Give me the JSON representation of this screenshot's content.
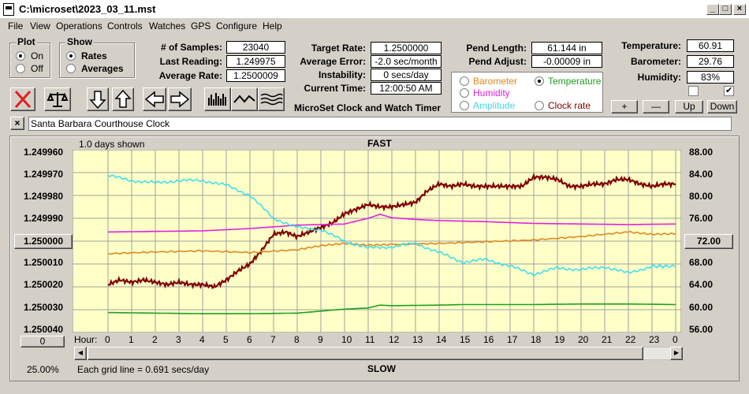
{
  "window": {
    "title": "C:\\microset\\2023_03_11.mst"
  },
  "menu": [
    "File",
    "View",
    "Operations",
    "Controls",
    "Watches",
    "GPS",
    "Configure",
    "Help"
  ],
  "plot_group": {
    "title": "Plot",
    "on_label": "On",
    "off_label": "Off",
    "selected": "On"
  },
  "show_group": {
    "title": "Show",
    "rates_label": "Rates",
    "averages_label": "Averages",
    "selected": "Rates"
  },
  "stats": {
    "samples_label": "# of Samples:",
    "samples": "23040",
    "last_reading_label": "Last Reading:",
    "last_reading": "1.249975",
    "average_rate_label": "Average Rate:",
    "average_rate": "1.2500009",
    "target_rate_label": "Target Rate:",
    "target_rate": "1.2500000",
    "average_error_label": "Average Error:",
    "average_error": "-2.0 sec/month",
    "instability_label": "Instability:",
    "instability": "0 secs/day",
    "current_time_label": "Current Time:",
    "current_time": "12:00:50 AM",
    "pend_length_label": "Pend Length:",
    "pend_length": "61.144 in",
    "pend_adjust_label": "Pend Adjust:",
    "pend_adjust": "-0.00009 in",
    "temperature_label": "Temperature:",
    "temperature": "60.91",
    "barometer_label": "Barometer:",
    "barometer": "29.76",
    "humidity_label": "Humidity:",
    "humidity": "83%"
  },
  "app_caption": "MicroSet Clock and Watch Timer",
  "sensor_options": {
    "barometer": "Barometer",
    "temperature": "Temperature",
    "humidity": "Humidity",
    "amplitude": "Amplitude",
    "clock_rate": "Clock rate",
    "selected": "Temperature"
  },
  "colors": {
    "barometer": "#e08820",
    "temperature": "#20a020",
    "humidity": "#e020e0",
    "amplitude": "#40e0f0",
    "clock_rate": "#800000",
    "grid": "#a0a0a0"
  },
  "adjust_buttons": {
    "plus": "+",
    "minus": "—",
    "up": "Up",
    "down": "Down"
  },
  "toolbar_icons": [
    "close-x-icon",
    "balance-scale-icon",
    "arrow-down-icon",
    "arrow-up-icon",
    "arrow-left-icon",
    "arrow-right-icon",
    "histogram-icon",
    "wave-icon",
    "multi-wave-icon"
  ],
  "clock_name": "Santa Barbara Courthouse Clock",
  "plot": {
    "days_shown": "1.0 days shown",
    "top_label": "FAST",
    "bottom_label": "SLOW",
    "hour_label": "Hour:",
    "hours": [
      "0",
      "1",
      "2",
      "3",
      "4",
      "5",
      "6",
      "7",
      "8",
      "9",
      "10",
      "11",
      "12",
      "13",
      "14",
      "15",
      "16",
      "17",
      "18",
      "19",
      "20",
      "21",
      "22",
      "23",
      "0"
    ],
    "left_ticks": [
      "1.249960",
      "1.249970",
      "1.249980",
      "1.249990",
      "",
      "1.250010",
      "1.250020",
      "1.250030",
      "1.250040"
    ],
    "center_button": "1.250000",
    "right_ticks": [
      "88.00",
      "84.00",
      "80.00",
      "76.00",
      "",
      "68.00",
      "64.00",
      "60.00",
      "56.00"
    ],
    "right_center_button": "72.00",
    "zero_button": "0",
    "zoom": "25.00%",
    "grid_note": "Each grid line = 0.691 secs/day"
  },
  "chart_data": {
    "type": "line",
    "x_label": "Hour",
    "x_range": [
      0,
      24
    ],
    "left_axis_range": [
      1.24996,
      1.25004
    ],
    "right_axis_range": [
      56,
      88
    ],
    "series": [
      {
        "name": "Clock rate",
        "axis": "left",
        "x": [
          0,
          0.5,
          1,
          1.5,
          2,
          2.5,
          3,
          3.5,
          4,
          4.5,
          5,
          5.5,
          6,
          6.5,
          7,
          7.5,
          8,
          8.5,
          9,
          9.5,
          10,
          10.5,
          11,
          11.5,
          12,
          12.5,
          13,
          13.5,
          14,
          14.5,
          15,
          15.5,
          16,
          16.5,
          17,
          17.5,
          18,
          18.5,
          19,
          19.5,
          20,
          20.5,
          21,
          21.5,
          22,
          22.5,
          23,
          23.5,
          24
        ],
        "values": [
          1.250019,
          1.250017,
          1.250018,
          1.250017,
          1.250018,
          1.250019,
          1.250018,
          1.250019,
          1.250019,
          1.25002,
          1.250017,
          1.250013,
          1.25001,
          1.250004,
          1.249997,
          1.249996,
          1.249998,
          1.249996,
          1.249994,
          1.249992,
          1.249988,
          1.249986,
          1.249984,
          1.249985,
          1.249985,
          1.249984,
          1.249983,
          1.249978,
          1.249975,
          1.249976,
          1.249975,
          1.249976,
          1.249976,
          1.249976,
          1.249976,
          1.249976,
          1.249972,
          1.249972,
          1.249973,
          1.249976,
          1.249976,
          1.249975,
          1.249975,
          1.249973,
          1.249973,
          1.249975,
          1.249976,
          1.249975,
          1.249975
        ]
      },
      {
        "name": "Humidity",
        "axis": "right",
        "x": [
          0,
          2,
          4,
          6,
          8,
          10,
          11,
          11.5,
          12,
          13,
          14,
          16,
          18,
          20,
          22,
          24
        ],
        "values": [
          73.6,
          73.7,
          73.8,
          74.2,
          74.8,
          75.0,
          76.0,
          76.7,
          76.1,
          75.8,
          75.6,
          75.4,
          75.1,
          75.0,
          74.9,
          75.0
        ]
      },
      {
        "name": "Barometer",
        "axis": "right",
        "x": [
          0,
          2,
          4,
          6,
          8,
          9,
          10,
          11,
          12,
          14,
          16,
          18,
          20,
          22,
          23,
          24
        ],
        "values": [
          69.8,
          70.1,
          70.3,
          70.0,
          70.5,
          71.2,
          71.6,
          71.3,
          71.4,
          71.6,
          71.9,
          72.2,
          72.8,
          73.6,
          73.2,
          73.3
        ]
      },
      {
        "name": "Amplitude",
        "axis": "right",
        "x": [
          0,
          1,
          2,
          3,
          4,
          5,
          6,
          7,
          8,
          9,
          10,
          11,
          12,
          13,
          14,
          15,
          16,
          17,
          18,
          19,
          20,
          21,
          22,
          23,
          23.5,
          24
        ],
        "values": [
          83.5,
          82.6,
          82.2,
          82.6,
          82.6,
          81.8,
          80.0,
          76.0,
          74.4,
          74.0,
          72.0,
          70.8,
          71.0,
          71.6,
          70.0,
          68.3,
          68.8,
          67.6,
          66.2,
          67.3,
          67.0,
          67.5,
          66.4,
          67.6,
          67.6,
          67.6
        ]
      },
      {
        "name": "Temperature",
        "axis": "right",
        "x": [
          0,
          2,
          4,
          6,
          8,
          10,
          11,
          11.5,
          12,
          14,
          15,
          18,
          20,
          22,
          24
        ],
        "values": [
          59.5,
          59.4,
          59.3,
          59.3,
          59.4,
          60.1,
          60.3,
          60.8,
          60.7,
          60.8,
          60.9,
          60.9,
          61.0,
          61.0,
          60.9
        ]
      }
    ]
  }
}
